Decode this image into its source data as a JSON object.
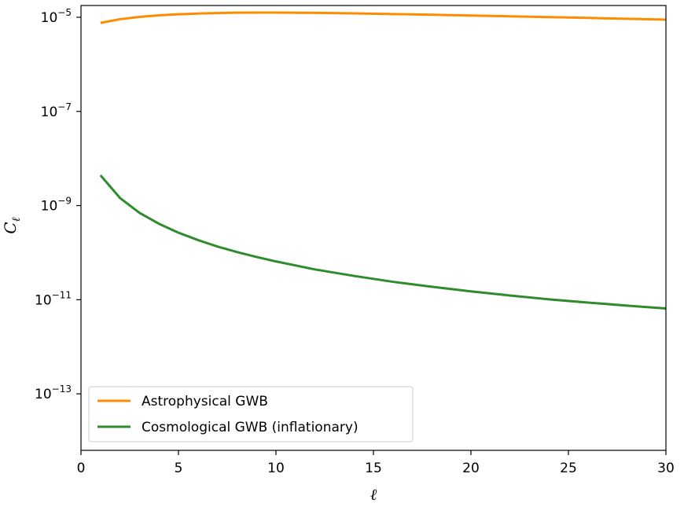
{
  "chart_data": {
    "type": "line",
    "xlabel": "ℓ",
    "ylabel_base": "C",
    "ylabel_sub": "ℓ",
    "xlim": [
      0,
      30
    ],
    "ylim_log10": [
      -14.2,
      -4.75
    ],
    "yscale": "log",
    "grid": false,
    "legend_position": "lower-left",
    "x_ticks": [
      0,
      5,
      10,
      15,
      20,
      25,
      30
    ],
    "y_tick_exponents": [
      -5,
      -7,
      -9,
      -11,
      -13
    ],
    "y_tick_base": "10",
    "y_tick_minus": "−",
    "series": [
      {
        "name": "Astrophysical GWB",
        "color": "#ff8c00",
        "x": [
          1,
          2,
          3,
          4,
          5,
          6,
          7,
          8,
          9,
          10,
          12,
          14,
          16,
          18,
          20,
          22,
          24,
          26,
          28,
          30
        ],
        "y": [
          7.6e-06,
          9.1e-06,
          1.02e-05,
          1.1e-05,
          1.16e-05,
          1.2e-05,
          1.23e-05,
          1.25e-05,
          1.26e-05,
          1.26e-05,
          1.24e-05,
          1.21e-05,
          1.17e-05,
          1.13e-05,
          1.09e-05,
          1.05e-05,
          1.01e-05,
          9.7e-06,
          9.3e-06,
          8.9e-06
        ]
      },
      {
        "name": "Cosmological GWB (inflationary)",
        "color": "#2e8b2e",
        "x": [
          1,
          2,
          3,
          4,
          5,
          6,
          7,
          8,
          9,
          10,
          12,
          14,
          16,
          18,
          20,
          22,
          24,
          26,
          28,
          30
        ],
        "y": [
          4.4e-09,
          1.45e-09,
          7e-10,
          4.1e-10,
          2.65e-10,
          1.85e-10,
          1.35e-10,
          1.03e-10,
          8.1e-11,
          6.5e-11,
          4.4e-11,
          3.2e-11,
          2.4e-11,
          1.88e-11,
          1.5e-11,
          1.23e-11,
          1.02e-11,
          8.7e-12,
          7.5e-12,
          6.5e-12
        ]
      }
    ]
  }
}
